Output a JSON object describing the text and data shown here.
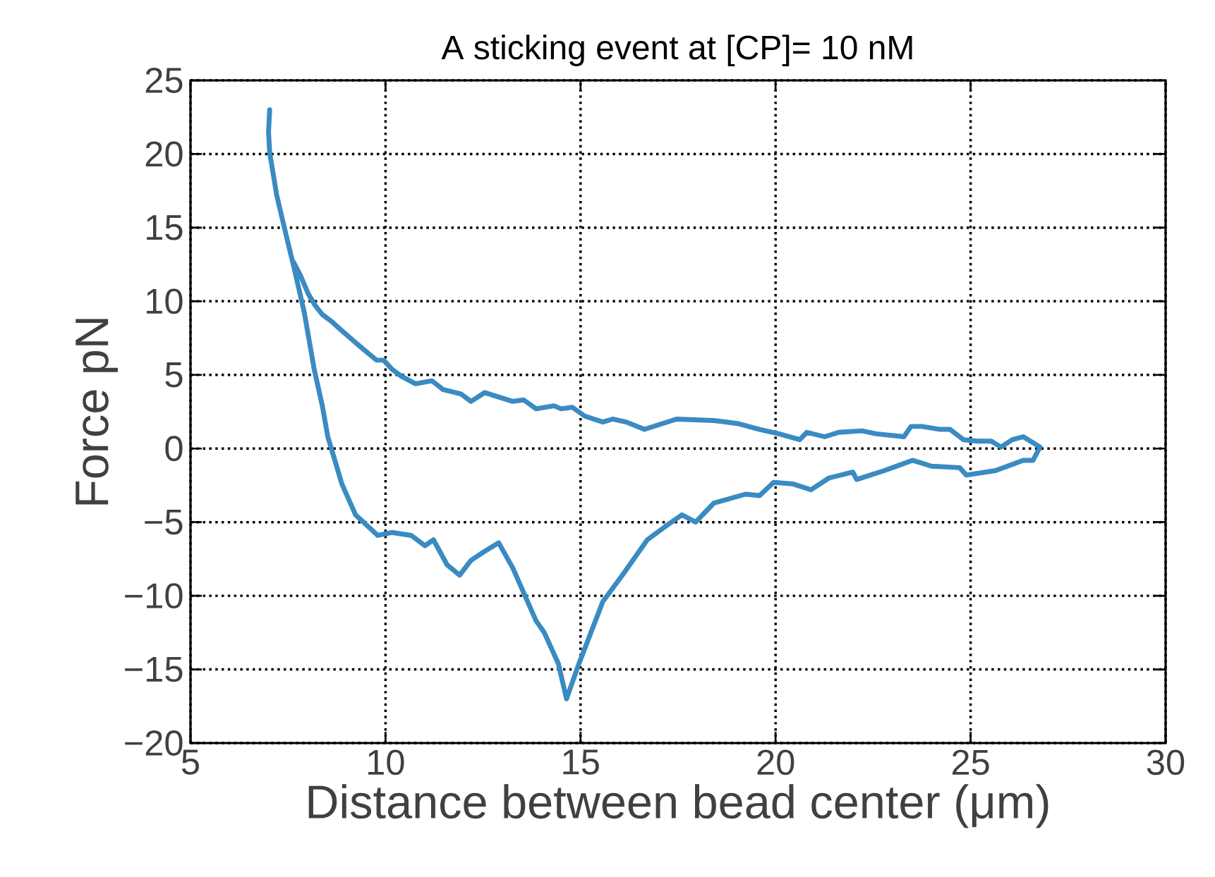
{
  "chart_data": {
    "type": "line",
    "title": "A sticking event at [CP]= 10 nM",
    "xlabel": "Distance between bead center (μm)",
    "ylabel": "Force pN",
    "xlim": [
      5,
      30
    ],
    "ylim": [
      -20,
      25
    ],
    "xticks": [
      5,
      10,
      15,
      20,
      25,
      30
    ],
    "yticks": [
      {
        "value": -20,
        "label": "−20"
      },
      {
        "value": -15,
        "label": "−15"
      },
      {
        "value": -10,
        "label": "−10"
      },
      {
        "value": -5,
        "label": "−5"
      },
      0,
      5,
      10,
      15,
      20,
      25
    ],
    "grid": true,
    "series": [
      {
        "color": "#3a8bc1",
        "x": [
          7.03,
          7.0,
          7.03,
          7.21,
          7.46,
          7.67,
          7.92,
          8.17,
          8.38,
          8.52,
          8.88,
          9.23,
          9.8,
          10.16,
          10.66,
          11.01,
          11.23,
          11.58,
          11.9,
          12.19,
          12.47,
          12.9,
          13.26,
          13.86,
          14.07,
          14.43,
          14.64,
          14.96,
          15.28,
          15.57,
          16.1,
          16.71,
          17.17,
          17.6,
          17.95,
          18.42,
          19.23,
          19.59,
          19.95,
          20.44,
          20.91,
          21.37,
          21.98,
          22.08,
          22.79,
          23.51,
          24.0,
          24.72,
          24.89,
          25.64,
          26.35,
          26.6,
          26.78,
          26.35,
          26.07,
          25.78,
          25.53,
          25.18,
          24.82,
          24.47,
          24.22,
          23.75,
          23.47,
          23.29,
          22.58,
          22.22,
          21.62,
          21.26,
          20.8,
          20.62,
          20.09,
          19.59,
          19.02,
          18.42,
          17.46,
          16.99,
          16.64,
          16.17,
          15.82,
          15.57,
          15.11,
          14.79,
          14.5,
          14.32,
          13.86,
          13.54,
          13.26,
          12.54,
          12.37,
          12.19,
          11.94,
          11.48,
          11.19,
          10.77,
          10.41,
          10.16,
          9.95,
          9.77,
          9.45,
          9.23,
          8.88,
          8.63,
          8.38,
          8.2,
          8.02,
          7.81,
          7.63
        ],
        "values": [
          23.0,
          21.5,
          20.1,
          17.2,
          14.4,
          12.1,
          9.2,
          5.4,
          2.9,
          0.8,
          -2.4,
          -4.5,
          -5.9,
          -5.7,
          -5.9,
          -6.6,
          -6.2,
          -7.9,
          -8.6,
          -7.6,
          -7.1,
          -6.4,
          -8.1,
          -11.7,
          -12.5,
          -14.6,
          -17.0,
          -14.6,
          -12.4,
          -10.4,
          -8.5,
          -6.2,
          -5.3,
          -4.5,
          -5.0,
          -3.7,
          -3.1,
          -3.2,
          -2.3,
          -2.4,
          -2.8,
          -2.0,
          -1.6,
          -2.1,
          -1.5,
          -0.8,
          -1.2,
          -1.3,
          -1.8,
          -1.5,
          -0.8,
          -0.8,
          0.1,
          0.8,
          0.6,
          0.1,
          0.5,
          0.5,
          0.6,
          1.3,
          1.3,
          1.5,
          1.5,
          0.8,
          1.0,
          1.2,
          1.1,
          0.8,
          1.1,
          0.6,
          1.0,
          1.3,
          1.7,
          1.9,
          2.0,
          1.6,
          1.3,
          1.8,
          2.0,
          1.8,
          2.2,
          2.8,
          2.7,
          2.9,
          2.7,
          3.3,
          3.2,
          3.8,
          3.5,
          3.2,
          3.7,
          4.0,
          4.6,
          4.4,
          4.9,
          5.4,
          6.0,
          6.0,
          6.7,
          7.2,
          8.0,
          8.6,
          9.1,
          9.7,
          10.5,
          11.8,
          12.7
        ]
      }
    ]
  }
}
